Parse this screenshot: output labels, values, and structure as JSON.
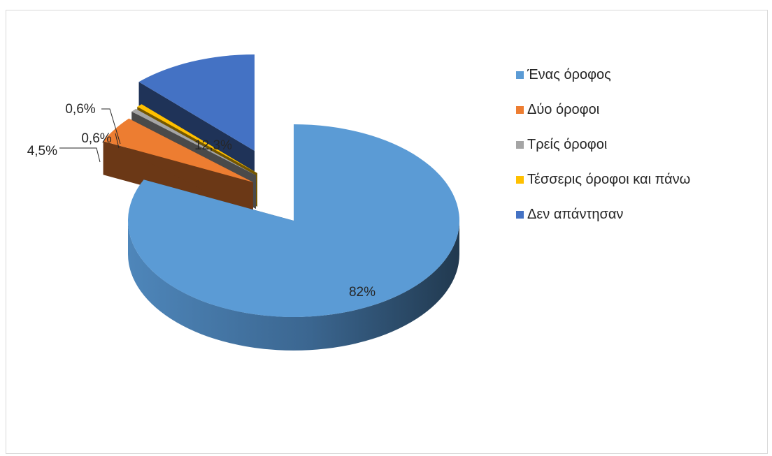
{
  "chart_data": {
    "type": "pie",
    "categories": [
      "Ένας όροφος",
      "Δύο όροφοι",
      "Τρείς όροφοι",
      "Τέσσερις όροφοι και πάνω",
      "Δεν απάντησαν"
    ],
    "values": [
      82,
      4.5,
      0.6,
      0.6,
      12.3
    ],
    "data_labels": [
      "82%",
      "4,5%",
      "0,6%",
      "0,6%",
      "12,3%"
    ],
    "colors": [
      "#5b9bd5",
      "#ed7d31",
      "#a5a5a5",
      "#ffc000",
      "#4472c4"
    ],
    "exploded": true,
    "three_d": true,
    "legend_position": "right"
  }
}
